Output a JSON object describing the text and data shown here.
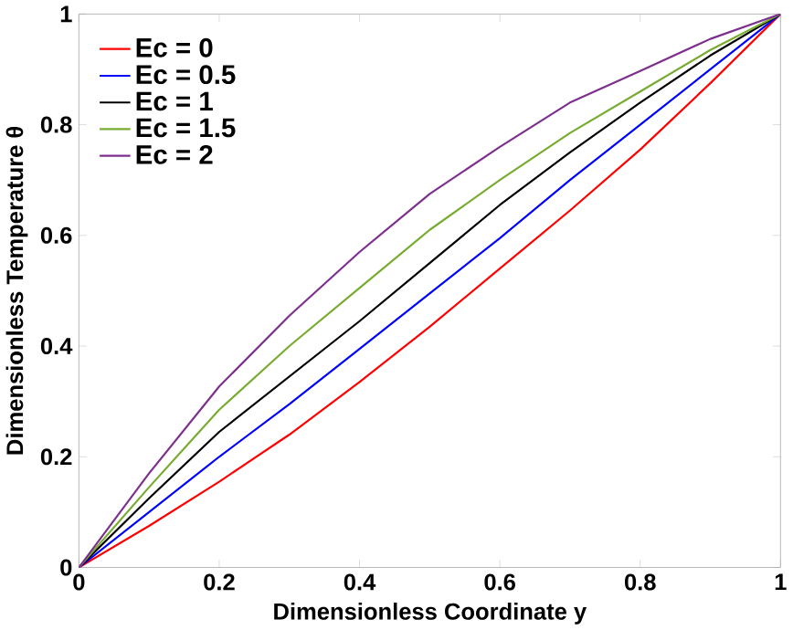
{
  "chart_data": {
    "type": "line",
    "xlabel": "Dimensionless Coordinate y",
    "ylabel": "Dimensionless Temperature θ",
    "x": [
      0,
      0.1,
      0.2,
      0.3,
      0.4,
      0.5,
      0.6,
      0.7,
      0.8,
      0.9,
      1
    ],
    "series": [
      {
        "name": "Ec = 0",
        "color": "#ff0000",
        "values": [
          0,
          0.075,
          0.155,
          0.24,
          0.335,
          0.435,
          0.54,
          0.645,
          0.755,
          0.875,
          1
        ]
      },
      {
        "name": "Ec = 0.5",
        "color": "#0000ff",
        "values": [
          0,
          0.1,
          0.2,
          0.295,
          0.395,
          0.495,
          0.595,
          0.7,
          0.8,
          0.9,
          1
        ]
      },
      {
        "name": "Ec = 1",
        "color": "#000000",
        "values": [
          0,
          0.125,
          0.245,
          0.345,
          0.445,
          0.55,
          0.655,
          0.75,
          0.84,
          0.925,
          1
        ]
      },
      {
        "name": "Ec = 1.5",
        "color": "#77ac30",
        "values": [
          0,
          0.145,
          0.285,
          0.4,
          0.505,
          0.61,
          0.7,
          0.785,
          0.86,
          0.935,
          1
        ]
      },
      {
        "name": "Ec = 2",
        "color": "#7e2f8e",
        "values": [
          0,
          0.17,
          0.327,
          0.455,
          0.57,
          0.675,
          0.76,
          0.84,
          0.897,
          0.955,
          1
        ]
      }
    ],
    "xlim": [
      0,
      1
    ],
    "ylim": [
      0,
      1
    ],
    "xticks": [
      0,
      0.2,
      0.4,
      0.6,
      0.8,
      1
    ],
    "yticks": [
      0,
      0.2,
      0.4,
      0.6,
      0.8,
      1
    ],
    "grid": false,
    "legend": "top left",
    "marker": "none",
    "line_style": "solid"
  }
}
